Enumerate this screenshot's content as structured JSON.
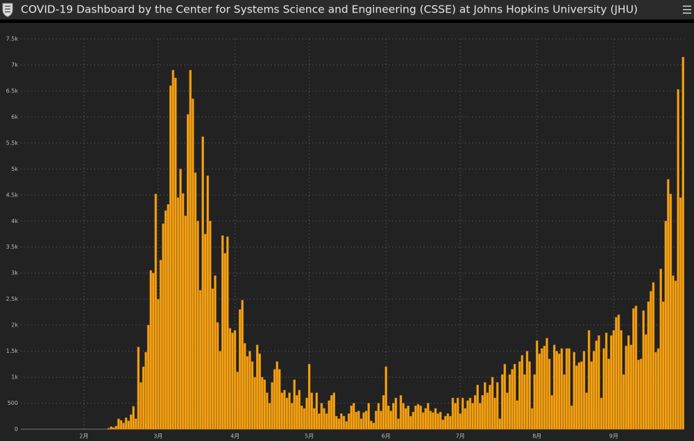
{
  "chart_data": {
    "type": "bar",
    "title": "COVID-19 Dashboard by the Center for Systems Science and Engineering (CSSE) at Johns Hopkins University (JHU)",
    "color": "#f5a316",
    "grid": true,
    "ylim": [
      0,
      7500
    ],
    "yticks": [
      0,
      500,
      {
        "value": 1000,
        "label": "1k"
      },
      {
        "value": 1500,
        "label": "1.5k"
      },
      {
        "value": 2000,
        "label": "2k"
      },
      {
        "value": 2500,
        "label": "2.5k"
      },
      {
        "value": 3000,
        "label": "3k"
      },
      {
        "value": 3500,
        "label": "3.5k"
      },
      {
        "value": 4000,
        "label": "4k"
      },
      {
        "value": 4500,
        "label": "4.5k"
      },
      {
        "value": 5000,
        "label": "5k"
      },
      {
        "value": 5500,
        "label": "5.5k"
      },
      {
        "value": 6000,
        "label": "6k"
      },
      {
        "value": 6500,
        "label": "6.5k"
      },
      {
        "value": 7000,
        "label": "7k"
      },
      {
        "value": 7500,
        "label": "7.5k"
      }
    ],
    "categories": [
      null,
      null,
      null,
      null,
      null,
      null,
      null,
      null,
      null,
      null,
      null,
      null,
      null,
      null,
      null,
      null,
      null,
      null,
      null,
      null,
      null,
      null,
      null,
      null,
      null,
      "2月",
      null,
      null,
      null,
      null,
      null,
      null,
      null,
      null,
      null,
      null,
      null,
      null,
      null,
      null,
      null,
      null,
      null,
      null,
      null,
      null,
      null,
      null,
      null,
      null,
      null,
      null,
      null,
      null,
      null,
      "3月",
      null,
      null,
      null,
      null,
      null,
      null,
      null,
      null,
      null,
      null,
      null,
      null,
      null,
      null,
      null,
      null,
      null,
      null,
      null,
      null,
      null,
      null,
      null,
      null,
      null,
      null,
      null,
      null,
      null,
      null,
      "4月",
      null,
      null,
      null,
      null,
      null,
      null,
      null,
      null,
      null,
      null,
      null,
      null,
      null,
      null,
      null,
      null,
      null,
      null,
      null,
      null,
      null,
      null,
      null,
      null,
      null,
      null,
      null,
      null,
      null,
      "5月",
      null,
      null,
      null,
      null,
      null,
      null,
      null,
      null,
      null,
      null,
      null,
      null,
      null,
      null,
      null,
      null,
      null,
      null,
      null,
      null,
      null,
      null,
      null,
      null,
      null,
      null,
      null,
      null,
      null,
      null,
      "6月",
      null,
      null,
      null,
      null,
      null,
      null,
      null,
      null,
      null,
      null,
      null,
      null,
      null,
      null,
      null,
      null,
      null,
      null,
      null,
      null,
      null,
      null,
      null,
      null,
      null,
      null,
      null,
      null,
      null,
      "7月",
      null,
      null,
      null,
      null,
      null,
      null,
      null,
      null,
      null,
      null,
      null,
      null,
      null,
      null,
      null,
      null,
      null,
      null,
      null,
      null,
      null,
      null,
      null,
      null,
      null,
      null,
      null,
      null,
      null,
      null,
      "8月",
      null,
      null,
      null,
      null,
      null,
      null,
      null,
      null,
      null,
      null,
      null,
      null,
      null,
      null,
      null,
      null,
      null,
      null,
      null,
      null,
      null,
      null,
      null,
      null,
      null,
      null,
      null,
      null,
      null,
      null,
      "9月",
      null,
      null,
      null,
      null,
      null,
      null,
      null,
      null,
      null,
      null,
      null,
      null,
      null,
      null,
      null,
      null,
      null,
      null,
      null,
      null,
      null,
      null,
      null,
      null,
      null,
      null,
      null,
      null
    ],
    "values": [
      0,
      0,
      0,
      0,
      0,
      0,
      0,
      0,
      0,
      0,
      0,
      0,
      0,
      0,
      0,
      0,
      0,
      0,
      0,
      0,
      0,
      0,
      0,
      0,
      0,
      0,
      0,
      0,
      0,
      0,
      0,
      0,
      0,
      0,
      0,
      20,
      50,
      30,
      60,
      200,
      170,
      120,
      220,
      160,
      280,
      440,
      200,
      1580,
      900,
      1200,
      1480,
      2000,
      3050,
      3000,
      4520,
      2500,
      3250,
      3950,
      4200,
      4320,
      6600,
      6900,
      6750,
      4450,
      5000,
      4530,
      4100,
      6050,
      6900,
      6350,
      4930,
      4000,
      2670,
      5620,
      3750,
      4870,
      4000,
      2700,
      2950,
      2050,
      1500,
      3720,
      3380,
      3700,
      1940,
      1850,
      1900,
      1100,
      2300,
      2480,
      1650,
      1400,
      1500,
      1300,
      1000,
      1620,
      1450,
      1000,
      950,
      700,
      500,
      900,
      1150,
      1300,
      1150,
      700,
      750,
      600,
      700,
      500,
      950,
      650,
      750,
      450,
      400,
      600,
      1250,
      700,
      400,
      700,
      300,
      500,
      400,
      300,
      550,
      650,
      700,
      250,
      200,
      300,
      250,
      150,
      300,
      450,
      500,
      330,
      350,
      200,
      320,
      350,
      500,
      160,
      120,
      350,
      500,
      350,
      650,
      1200,
      450,
      350,
      500,
      600,
      200,
      650,
      500,
      400,
      450,
      250,
      330,
      450,
      480,
      450,
      320,
      400,
      500,
      350,
      320,
      400,
      300,
      330,
      180,
      250,
      300,
      250,
      600,
      500,
      600,
      300,
      600,
      400,
      550,
      600,
      500,
      650,
      850,
      500,
      650,
      900,
      700,
      850,
      1000,
      600,
      900,
      200,
      1050,
      1250,
      700,
      1050,
      1150,
      1250,
      550,
      1300,
      1420,
      1050,
      1500,
      1300,
      400,
      1050,
      1700,
      1450,
      1550,
      1600,
      1750,
      1350,
      650,
      1620,
      1500,
      1450,
      1550,
      1050,
      1550,
      1550,
      450,
      1480,
      1220,
      1280,
      1300,
      1500,
      700,
      1900,
      1300,
      1500,
      1700,
      1800,
      600,
      1550,
      1850,
      1350,
      1800,
      1900,
      2150,
      2200,
      1900,
      1050,
      1600,
      1800,
      1620,
      2320,
      2370,
      1330,
      1350,
      2280,
      1820,
      2450,
      2650,
      2820,
      1480,
      1550,
      3080,
      2450,
      4000,
      4800,
      4520,
      2950,
      2850,
      6530,
      4450,
      7150
    ]
  }
}
